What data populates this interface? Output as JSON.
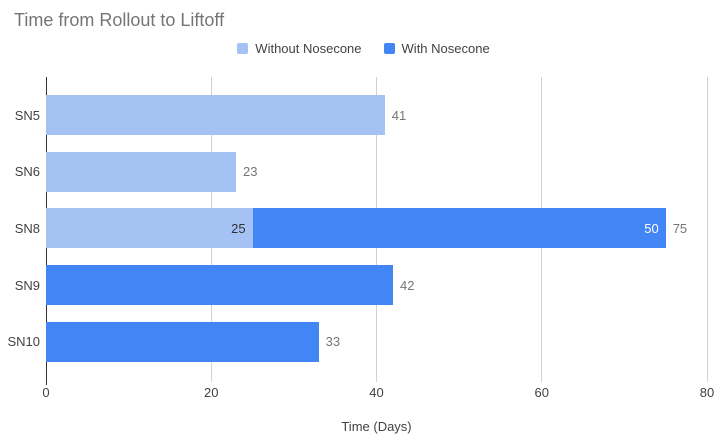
{
  "chart_data": {
    "type": "bar",
    "orientation": "horizontal",
    "stacked": true,
    "title": "Time from Rollout to Liftoff",
    "categories": [
      "SN5",
      "SN6",
      "SN8",
      "SN9",
      "SN10"
    ],
    "series": [
      {
        "name": "Without Nosecone",
        "color": "#a4c2f4",
        "inside_label_color": "#333333",
        "values": [
          41,
          23,
          25,
          null,
          null
        ]
      },
      {
        "name": "With Nosecone",
        "color": "#4285f4",
        "inside_label_color": "#ffffff",
        "values": [
          null,
          null,
          50,
          42,
          33
        ]
      }
    ],
    "totals": [
      41,
      23,
      75,
      42,
      33
    ],
    "xlabel": "Time (Days)",
    "xlim": [
      0,
      80
    ],
    "xticks": [
      0,
      20,
      40,
      60,
      80
    ],
    "grid": true,
    "legend_position": "top",
    "colors": {
      "title_text": "#757575",
      "axis_text": "#424242",
      "value_label_text": "#757575",
      "gridline": "#d1d1d1",
      "axis_line": "#333333",
      "background": "#ffffff"
    }
  }
}
